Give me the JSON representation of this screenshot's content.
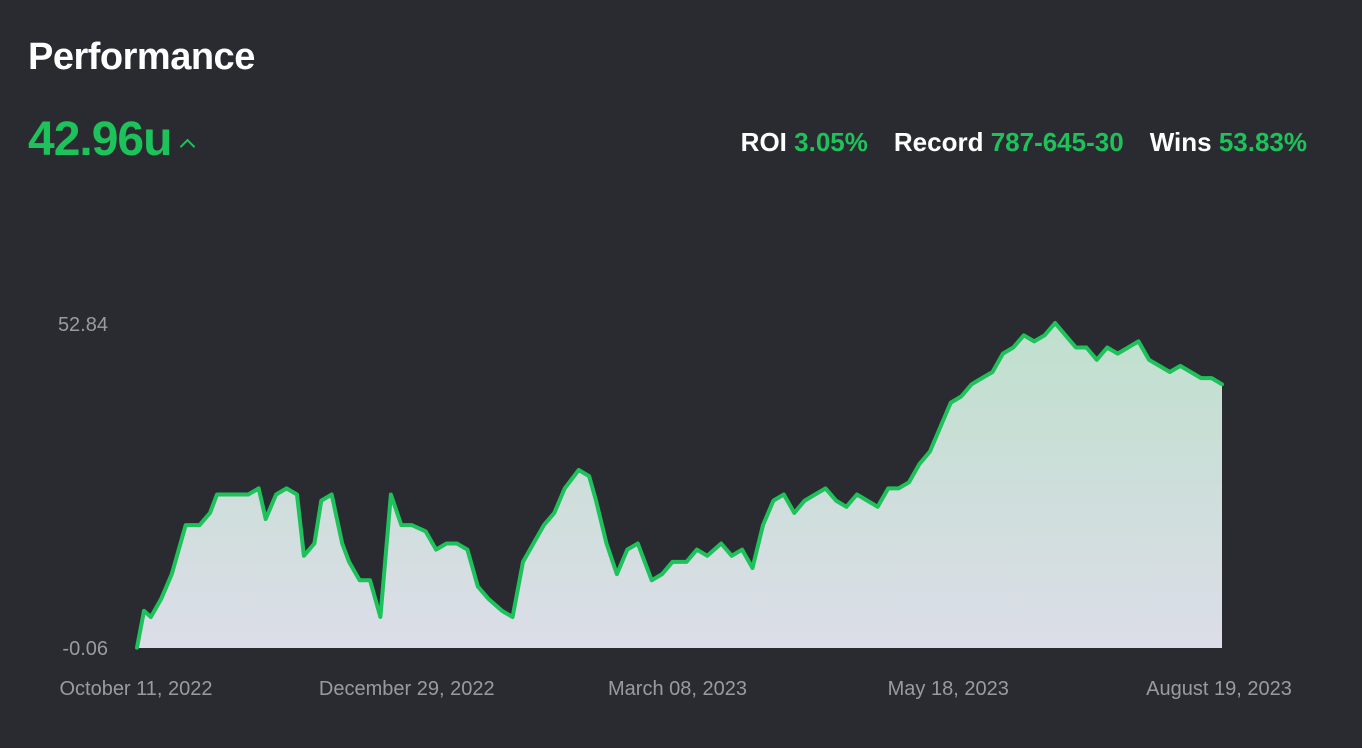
{
  "header": {
    "title": "Performance",
    "total": "42.96u"
  },
  "stats": [
    {
      "label": "ROI",
      "value": "3.05%"
    },
    {
      "label": "Record",
      "value": "787-645-30"
    },
    {
      "label": "Wins",
      "value": "53.83%"
    }
  ],
  "colors": {
    "background": "#2a2a31",
    "accent": "#1ec25b",
    "text": "#ffffff",
    "axis_text": "#9a9aa2"
  },
  "icons": {
    "trend": "chevron-up-icon"
  },
  "chart_data": {
    "type": "area",
    "title": "",
    "xlabel": "",
    "ylabel": "",
    "y_ticks": [
      "52.84",
      "-0.06"
    ],
    "ylim": [
      -0.06,
      52.84
    ],
    "x_ticks": [
      "October 11, 2022",
      "December 29, 2022",
      "March 08, 2023",
      "May 18, 2023",
      "August 19, 2023"
    ],
    "xlim": [
      "2022-10-11",
      "2023-08-19"
    ],
    "grid": false,
    "legend": "none",
    "series": [
      {
        "x": [
          "2022-10-11",
          "2022-10-13",
          "2022-10-15",
          "2022-10-18",
          "2022-10-21",
          "2022-10-25",
          "2022-10-29",
          "2022-11-01",
          "2022-11-03",
          "2022-11-06",
          "2022-11-09",
          "2022-11-12",
          "2022-11-15",
          "2022-11-17",
          "2022-11-20",
          "2022-11-23",
          "2022-11-26",
          "2022-11-28",
          "2022-12-01",
          "2022-12-03",
          "2022-12-06",
          "2022-12-09",
          "2022-12-11",
          "2022-12-14",
          "2022-12-17",
          "2022-12-20",
          "2022-12-23",
          "2022-12-26",
          "2022-12-29",
          "2023-01-02",
          "2023-01-05",
          "2023-01-08",
          "2023-01-11",
          "2023-01-14",
          "2023-01-17",
          "2023-01-20",
          "2023-01-24",
          "2023-01-27",
          "2023-01-30",
          "2023-02-02",
          "2023-02-05",
          "2023-02-08",
          "2023-02-11",
          "2023-02-15",
          "2023-02-18",
          "2023-02-20",
          "2023-02-23",
          "2023-02-26",
          "2023-03-01",
          "2023-03-04",
          "2023-03-08",
          "2023-03-11",
          "2023-03-14",
          "2023-03-18",
          "2023-03-21",
          "2023-03-24",
          "2023-03-28",
          "2023-03-31",
          "2023-04-03",
          "2023-04-06",
          "2023-04-09",
          "2023-04-12",
          "2023-04-15",
          "2023-04-18",
          "2023-04-21",
          "2023-04-24",
          "2023-04-27",
          "2023-04-30",
          "2023-05-03",
          "2023-05-06",
          "2023-05-09",
          "2023-05-12",
          "2023-05-15",
          "2023-05-18",
          "2023-05-21",
          "2023-05-24",
          "2023-05-27",
          "2023-05-30",
          "2023-06-02",
          "2023-06-05",
          "2023-06-08",
          "2023-06-11",
          "2023-06-14",
          "2023-06-17",
          "2023-06-20",
          "2023-06-23",
          "2023-06-26",
          "2023-06-29",
          "2023-07-02",
          "2023-07-05",
          "2023-07-08",
          "2023-07-11",
          "2023-07-14",
          "2023-07-17",
          "2023-07-20",
          "2023-07-23",
          "2023-07-26",
          "2023-07-29",
          "2023-08-01",
          "2023-08-04",
          "2023-08-07",
          "2023-08-10",
          "2023-08-13",
          "2023-08-16",
          "2023-08-19"
        ],
        "y": [
          0,
          6,
          5,
          8,
          12,
          20,
          20,
          22,
          25,
          25,
          25,
          25,
          26,
          21,
          25,
          26,
          25,
          15,
          17,
          24,
          25,
          17,
          14,
          11,
          11,
          5,
          25,
          20,
          20,
          19,
          16,
          17,
          17,
          16,
          10,
          8,
          6,
          5,
          14,
          17,
          20,
          22,
          26,
          29,
          28,
          24,
          17,
          12,
          16,
          17,
          11,
          12,
          14,
          14,
          16,
          15,
          17,
          15,
          16,
          13,
          20,
          24,
          25,
          22,
          24,
          25,
          26,
          24,
          23,
          25,
          24,
          23,
          26,
          26,
          27,
          30,
          32,
          36,
          40,
          41,
          43,
          44,
          45,
          48,
          49,
          51,
          50,
          51,
          53,
          51,
          49,
          49,
          47,
          49,
          48,
          49,
          50,
          47,
          46,
          45,
          46,
          45,
          44,
          44,
          43
        ]
      }
    ]
  }
}
